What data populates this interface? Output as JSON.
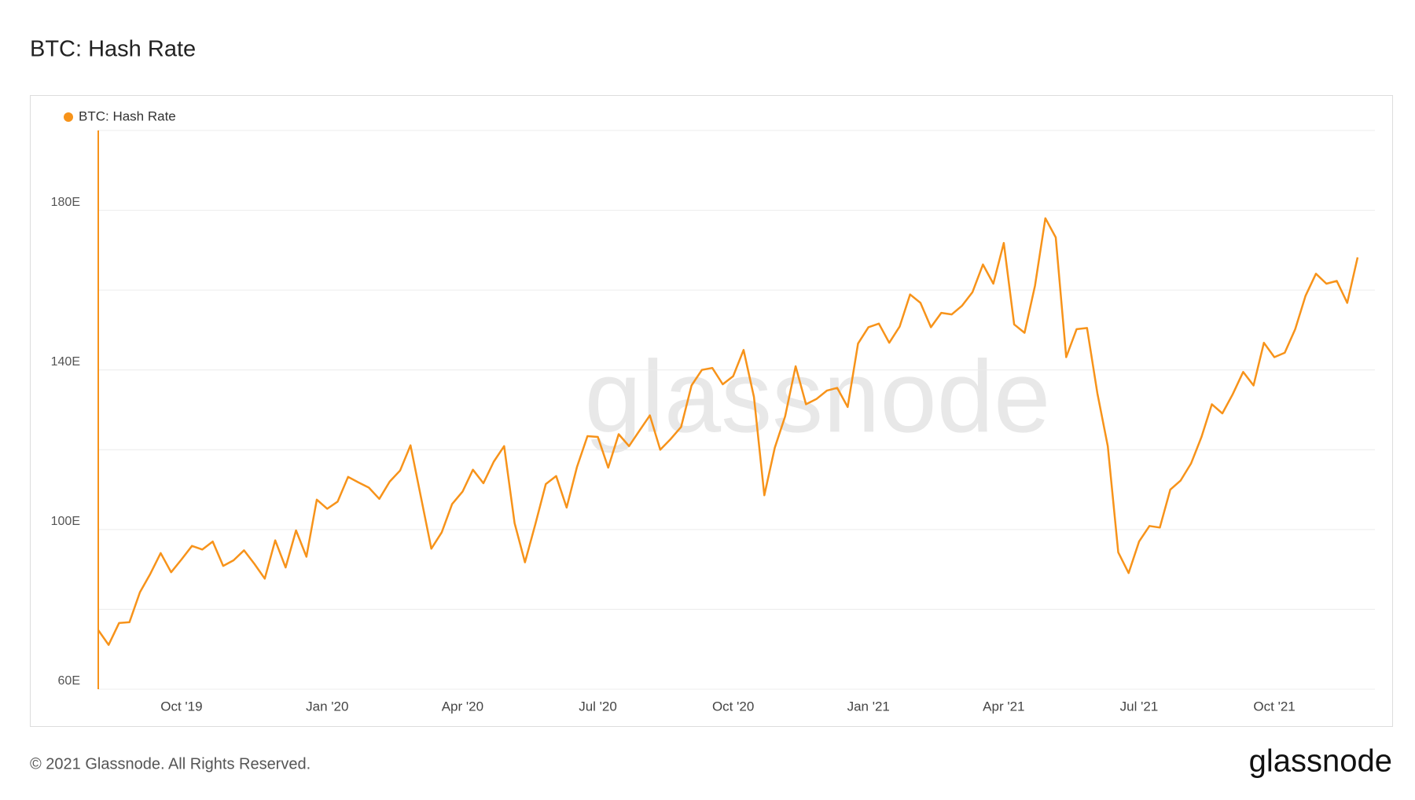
{
  "chart_data": {
    "type": "line",
    "title": "BTC: Hash Rate",
    "watermark": "glassnode",
    "footer": "© 2021 Glassnode. All Rights Reserved.",
    "logo": "glassnode",
    "ylim": [
      60,
      200
    ],
    "yticks": [
      {
        "value": 60,
        "label": "60E"
      },
      {
        "value": 100,
        "label": "100E"
      },
      {
        "value": 140,
        "label": "140E"
      },
      {
        "value": 180,
        "label": "180E"
      }
    ],
    "grid_lines": [
      60,
      80,
      100,
      120,
      140,
      160,
      180,
      200
    ],
    "legend": "top-left",
    "categories": [
      null,
      null,
      null,
      null,
      null,
      null,
      null,
      null,
      "Oct '19",
      null,
      null,
      null,
      null,
      null,
      null,
      null,
      null,
      null,
      null,
      null,
      null,
      null,
      "Jan '20",
      null,
      null,
      null,
      null,
      null,
      null,
      null,
      null,
      null,
      null,
      null,
      null,
      "Apr '20",
      null,
      null,
      null,
      null,
      null,
      null,
      null,
      null,
      null,
      null,
      null,
      null,
      "Jul '20",
      null,
      null,
      null,
      null,
      null,
      null,
      null,
      null,
      null,
      null,
      null,
      null,
      "Oct '20",
      null,
      null,
      null,
      null,
      null,
      null,
      null,
      null,
      null,
      null,
      null,
      null,
      "Jan '21",
      null,
      null,
      null,
      null,
      null,
      null,
      null,
      null,
      null,
      null,
      null,
      null,
      "Apr '21",
      null,
      null,
      null,
      null,
      null,
      null,
      null,
      null,
      null,
      null,
      null,
      null,
      "Jul '21",
      null,
      null,
      null,
      null,
      null,
      null,
      null,
      null,
      null,
      null,
      null,
      null,
      "Oct '21",
      null,
      null,
      null,
      null,
      null,
      null,
      null,
      null
    ],
    "series": [
      {
        "name": "BTC: Hash Rate",
        "color": "#f7931a",
        "values": [
          74.8,
          71.1,
          76.6,
          76.8,
          84.3,
          88.9,
          94.1,
          89.3,
          92.5,
          95.9,
          95.0,
          97.0,
          90.9,
          92.3,
          94.8,
          91.4,
          87.7,
          97.3,
          90.5,
          99.8,
          93.2,
          107.5,
          105.2,
          107.0,
          113.2,
          111.8,
          110.5,
          107.7,
          112.0,
          114.8,
          121.1,
          108.2,
          95.2,
          99.3,
          106.4,
          109.5,
          115.0,
          111.6,
          117.0,
          120.9,
          101.6,
          91.8,
          101.4,
          111.4,
          113.4,
          105.5,
          115.7,
          123.4,
          123.2,
          115.5,
          123.9,
          120.9,
          124.8,
          128.6,
          120.0,
          122.7,
          125.7,
          136.1,
          140.0,
          140.5,
          136.4,
          138.4,
          145.0,
          133.2,
          108.6,
          120.5,
          128.4,
          140.9,
          131.4,
          132.7,
          134.8,
          135.5,
          130.7,
          146.6,
          150.7,
          151.6,
          146.8,
          150.9,
          158.9,
          156.8,
          150.7,
          154.3,
          153.9,
          156.1,
          159.5,
          166.4,
          161.6,
          171.8,
          151.4,
          149.3,
          161.1,
          178.0,
          173.2,
          143.2,
          150.2,
          150.5,
          134.1,
          120.9,
          94.3,
          89.1,
          97.0,
          100.9,
          100.5,
          110.0,
          112.3,
          116.6,
          123.2,
          131.4,
          129.1,
          133.9,
          139.5,
          136.1,
          146.8,
          143.2,
          144.3,
          150.2,
          158.6,
          164.1,
          161.6,
          162.3,
          156.8,
          168.2
        ]
      }
    ]
  }
}
